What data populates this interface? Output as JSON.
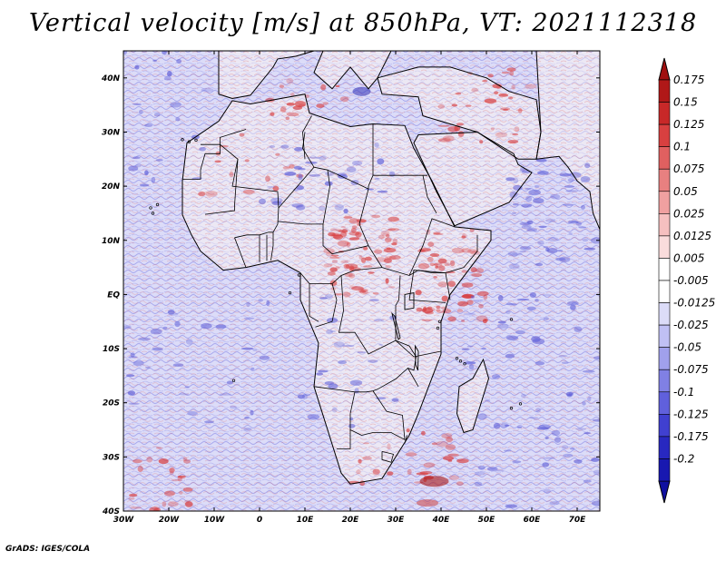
{
  "title": "Vertical velocity [m/s] at 850hPa, VT: 2021112318",
  "footer": "GrADS: IGES/COLA",
  "map": {
    "lon_range": [
      -30,
      75
    ],
    "lat_range": [
      -40,
      45
    ],
    "lat_ticks": [
      {
        "value": 40,
        "label": "40N"
      },
      {
        "value": 30,
        "label": "30N"
      },
      {
        "value": 20,
        "label": "20N"
      },
      {
        "value": 10,
        "label": "10N"
      },
      {
        "value": 0,
        "label": "EQ"
      },
      {
        "value": -10,
        "label": "10S"
      },
      {
        "value": -20,
        "label": "20S"
      },
      {
        "value": -30,
        "label": "30S"
      },
      {
        "value": -40,
        "label": "40S"
      }
    ],
    "lon_ticks": [
      {
        "value": -30,
        "label": "30W"
      },
      {
        "value": -20,
        "label": "20W"
      },
      {
        "value": -10,
        "label": "10W"
      },
      {
        "value": 0,
        "label": "0"
      },
      {
        "value": 10,
        "label": "10E"
      },
      {
        "value": 20,
        "label": "20E"
      },
      {
        "value": 30,
        "label": "30E"
      },
      {
        "value": 40,
        "label": "40E"
      },
      {
        "value": 50,
        "label": "50E"
      },
      {
        "value": 60,
        "label": "60E"
      },
      {
        "value": 70,
        "label": "70E"
      }
    ],
    "colors": {
      "ocean": "#dcdcf8",
      "land": "#ece8f4",
      "coast": "#000000",
      "up": "#d83838",
      "down": "#6060d8"
    }
  },
  "colorbar": {
    "levels": [
      {
        "label": "0.175",
        "color": "#b01818"
      },
      {
        "label": "0.15",
        "color": "#c82828"
      },
      {
        "label": "0.125",
        "color": "#d84040"
      },
      {
        "label": "0.1",
        "color": "#e06060"
      },
      {
        "label": "0.075",
        "color": "#e88080"
      },
      {
        "label": "0.05",
        "color": "#f0a0a0"
      },
      {
        "label": "0.025",
        "color": "#f6c0c0"
      },
      {
        "label": "0.0125",
        "color": "#fadcdc"
      },
      {
        "label": "0.005",
        "color": "#ffffff"
      },
      {
        "label": "-0.005",
        "color": "#ffffff"
      },
      {
        "label": "-0.0125",
        "color": "#dcdcf8"
      },
      {
        "label": "-0.025",
        "color": "#c0c0f4"
      },
      {
        "label": "-0.05",
        "color": "#a0a0ec"
      },
      {
        "label": "-0.075",
        "color": "#8080e4"
      },
      {
        "label": "-0.1",
        "color": "#6060dc"
      },
      {
        "label": "-0.125",
        "color": "#4040d0"
      },
      {
        "label": "-0.175",
        "color": "#2828c0"
      },
      {
        "label": "-0.2",
        "color": "#1818b0"
      }
    ],
    "top_color": "#a01010",
    "bottom_color": "#1010a0"
  }
}
